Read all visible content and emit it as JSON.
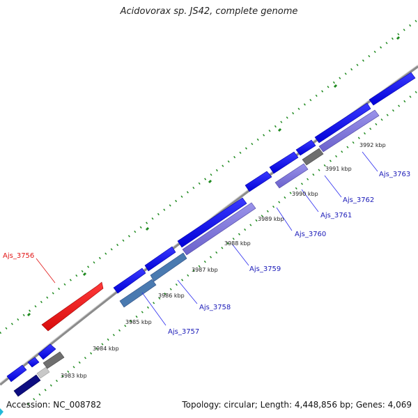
{
  "title": "Acidovorax sp. JS42, complete genome",
  "accession": "Accession: NC_008782",
  "summary": "Topology: circular; Length: 4,448,856 bp; Genes: 4,069",
  "colors": {
    "backbone": "#8c8c8c",
    "tick_major": "#1f8a1f",
    "cds_forward": "#0b0bef",
    "cds_reverse": "#7b73d8",
    "highlight": "#e81b1b",
    "steelblue": "#4a7ab0",
    "gray": "#6f6f6f",
    "lightgray": "#c8c8c8",
    "navy": "#0d0d80",
    "label_line": "#2a2af0",
    "label_line_red": "#e11414"
  },
  "ticks": [
    {
      "label": "3983 kbp"
    },
    {
      "label": "3984 kbp"
    },
    {
      "label": "3985 kbp"
    },
    {
      "label": "3986 kbp"
    },
    {
      "label": "3987 kbp"
    },
    {
      "label": "3988 kbp"
    },
    {
      "label": "3989 kbp"
    },
    {
      "label": "3990 kbp"
    },
    {
      "label": "3991 kbp"
    },
    {
      "label": "3992 kbp"
    }
  ],
  "genes": [
    {
      "label": "Ajs_3756",
      "color": "red"
    },
    {
      "label": "Ajs_3757",
      "color": "blue"
    },
    {
      "label": "Ajs_3758",
      "color": "blue"
    },
    {
      "label": "Ajs_3759",
      "color": "blue"
    },
    {
      "label": "Ajs_3760",
      "color": "blue"
    },
    {
      "label": "Ajs_3761",
      "color": "blue"
    },
    {
      "label": "Ajs_3762",
      "color": "blue"
    },
    {
      "label": "Ajs_3763",
      "color": "blue"
    }
  ]
}
